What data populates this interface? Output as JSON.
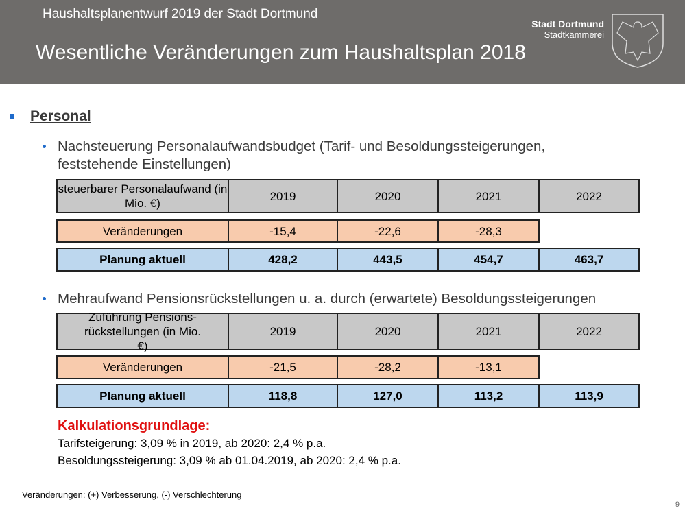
{
  "header": {
    "subtitle": "Haushaltsplanentwurf 2019 der Stadt Dortmund",
    "title": "Wesentliche Veränderungen zum Haushaltsplan 2018",
    "brand_name": "Stadt Dortmund",
    "brand_dept": "Stadtkämmerei"
  },
  "section": "Personal",
  "bullet1": {
    "line1": "Nachsteuerung Personalaufwandsbudget (Tarif- und Besoldungssteigerungen,",
    "line2": "feststehende Einstellungen)"
  },
  "table1": {
    "header": [
      "steuerbarer Personalaufwand (in Mio. €)",
      "2019",
      "2020",
      "2021",
      "2022"
    ],
    "changes": [
      "Veränderungen",
      "-15,4",
      "-22,6",
      "-28,3"
    ],
    "plan": [
      "Planung aktuell",
      "428,2",
      "443,5",
      "454,7",
      "463,7"
    ]
  },
  "bullet2": "Mehraufwand Pensionsrückstellungen u. a. durch (erwartete) Besoldungssteigerungen",
  "table2": {
    "header": [
      "Zuführung Pensions-rückstellungen (in Mio. €)",
      "2019",
      "2020",
      "2021",
      "2022"
    ],
    "changes": [
      "Veränderungen",
      "-21,5",
      "-28,2",
      "-13,1"
    ],
    "plan": [
      "Planung aktuell",
      "118,8",
      "127,0",
      "113,2",
      "113,9"
    ]
  },
  "calc": {
    "title": "Kalkulationsgrundlage:",
    "line1": "Tarifsteigerung: 3,09 % in 2019, ab 2020: 2,4 % p.a.",
    "line2": "Besoldungssteigerung: 3,09 % ab 01.04.2019, ab 2020: 2,4 % p.a."
  },
  "footnote": "Veränderungen: (+) Verbesserung, (-) Verschlechterung",
  "page_number": "9"
}
